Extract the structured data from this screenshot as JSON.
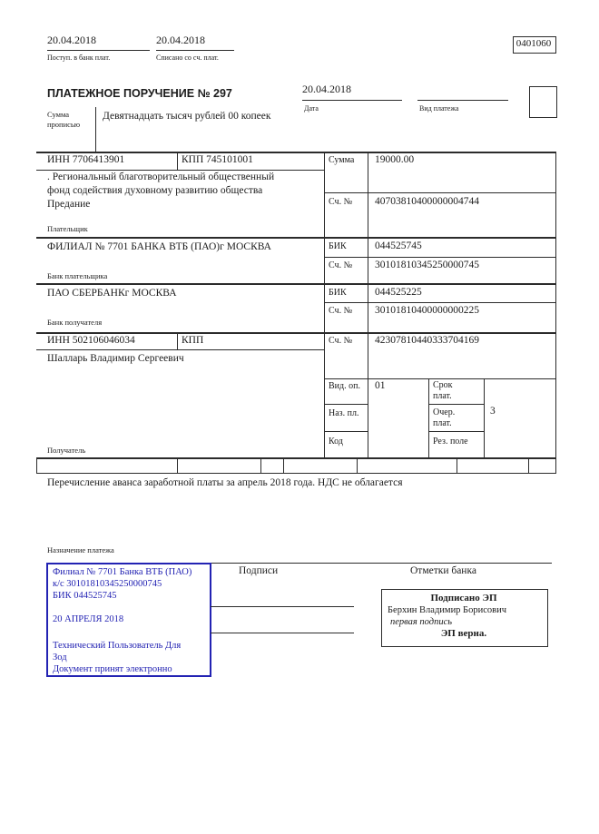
{
  "header": {
    "received_date": "20.04.2018",
    "received_label": "Поступ. в банк плат.",
    "debited_date": "20.04.2018",
    "debited_label": "Списано со сч. плат.",
    "form_code": "0401060",
    "title": "ПЛАТЕЖНОЕ ПОРУЧЕНИЕ № 297",
    "doc_date": "20.04.2018",
    "date_label": "Дата",
    "payment_type_label": "Вид платежа"
  },
  "amount_in_words": {
    "label": "Сумма прописью",
    "value": "Девятнадцать тысяч рублей 00 копеек"
  },
  "payer": {
    "inn": "ИНН 7706413901",
    "kpp": "КПП 745101001",
    "sum_label": "Сумма",
    "sum_value": "19000.00",
    "name_lines": [
      ". Региональный благотворительный общественный",
      "фонд содействия духовному развитию общества",
      "Предание"
    ],
    "account_label": "Сч. №",
    "account": "40703810400000004744",
    "section_label": "Плательщик"
  },
  "payer_bank": {
    "name": "ФИЛИАЛ № 7701 БАНКА ВТБ (ПАО)г МОСКВА",
    "bik_label": "БИК",
    "bik": "044525745",
    "account_label": "Сч. №",
    "account": "30101810345250000745",
    "section_label": "Банк плательщика"
  },
  "payee_bank": {
    "name": "ПАО СБЕРБАНКг МОСКВА",
    "bik_label": "БИК",
    "bik": "044525225",
    "account_label": "Сч. №",
    "account": "30101810400000000225",
    "section_label": "Банк получателя"
  },
  "payee": {
    "inn": "ИНН 502106046034",
    "kpp_label": "КПП",
    "account_label": "Сч. №",
    "account": "42307810440333704169",
    "name": "Шалларь Владимир Сергеевич",
    "section_label": "Получатель",
    "op_type_label": "Вид. оп.",
    "op_type_value": "01",
    "term_label_1": "Срок",
    "term_label_2": "плат.",
    "naz_pl_label": "Наз. пл.",
    "priority_label_1": "Очер.",
    "priority_label_2": "плат.",
    "priority_value": "3",
    "code_label": "Код",
    "reserve_label": "Рез. поле"
  },
  "purpose": {
    "text": "Перечисление аванса заработной платы за апрель 2018 года. НДС не облагается",
    "label": "Назначение платежа"
  },
  "footer": {
    "signatures_label": "Подписи",
    "bank_marks_label": "Отметки банка",
    "stamp": {
      "color": "#2323b3",
      "lines": [
        "Филиал № 7701 Банка ВТБ (ПАО)",
        "к/с 30101810345250000745",
        "БИК 044525745",
        "20 АПРЕЛЯ 2018",
        "Технический Пользователь Для",
        "Зод",
        "Документ принят электронно"
      ]
    },
    "bank_stamp": {
      "signed_label": "Подписано ЭП",
      "signer_name": "Берхин Владимир Борисович",
      "signature_kind": "первая подпись",
      "valid_label": "ЭП верна."
    }
  }
}
